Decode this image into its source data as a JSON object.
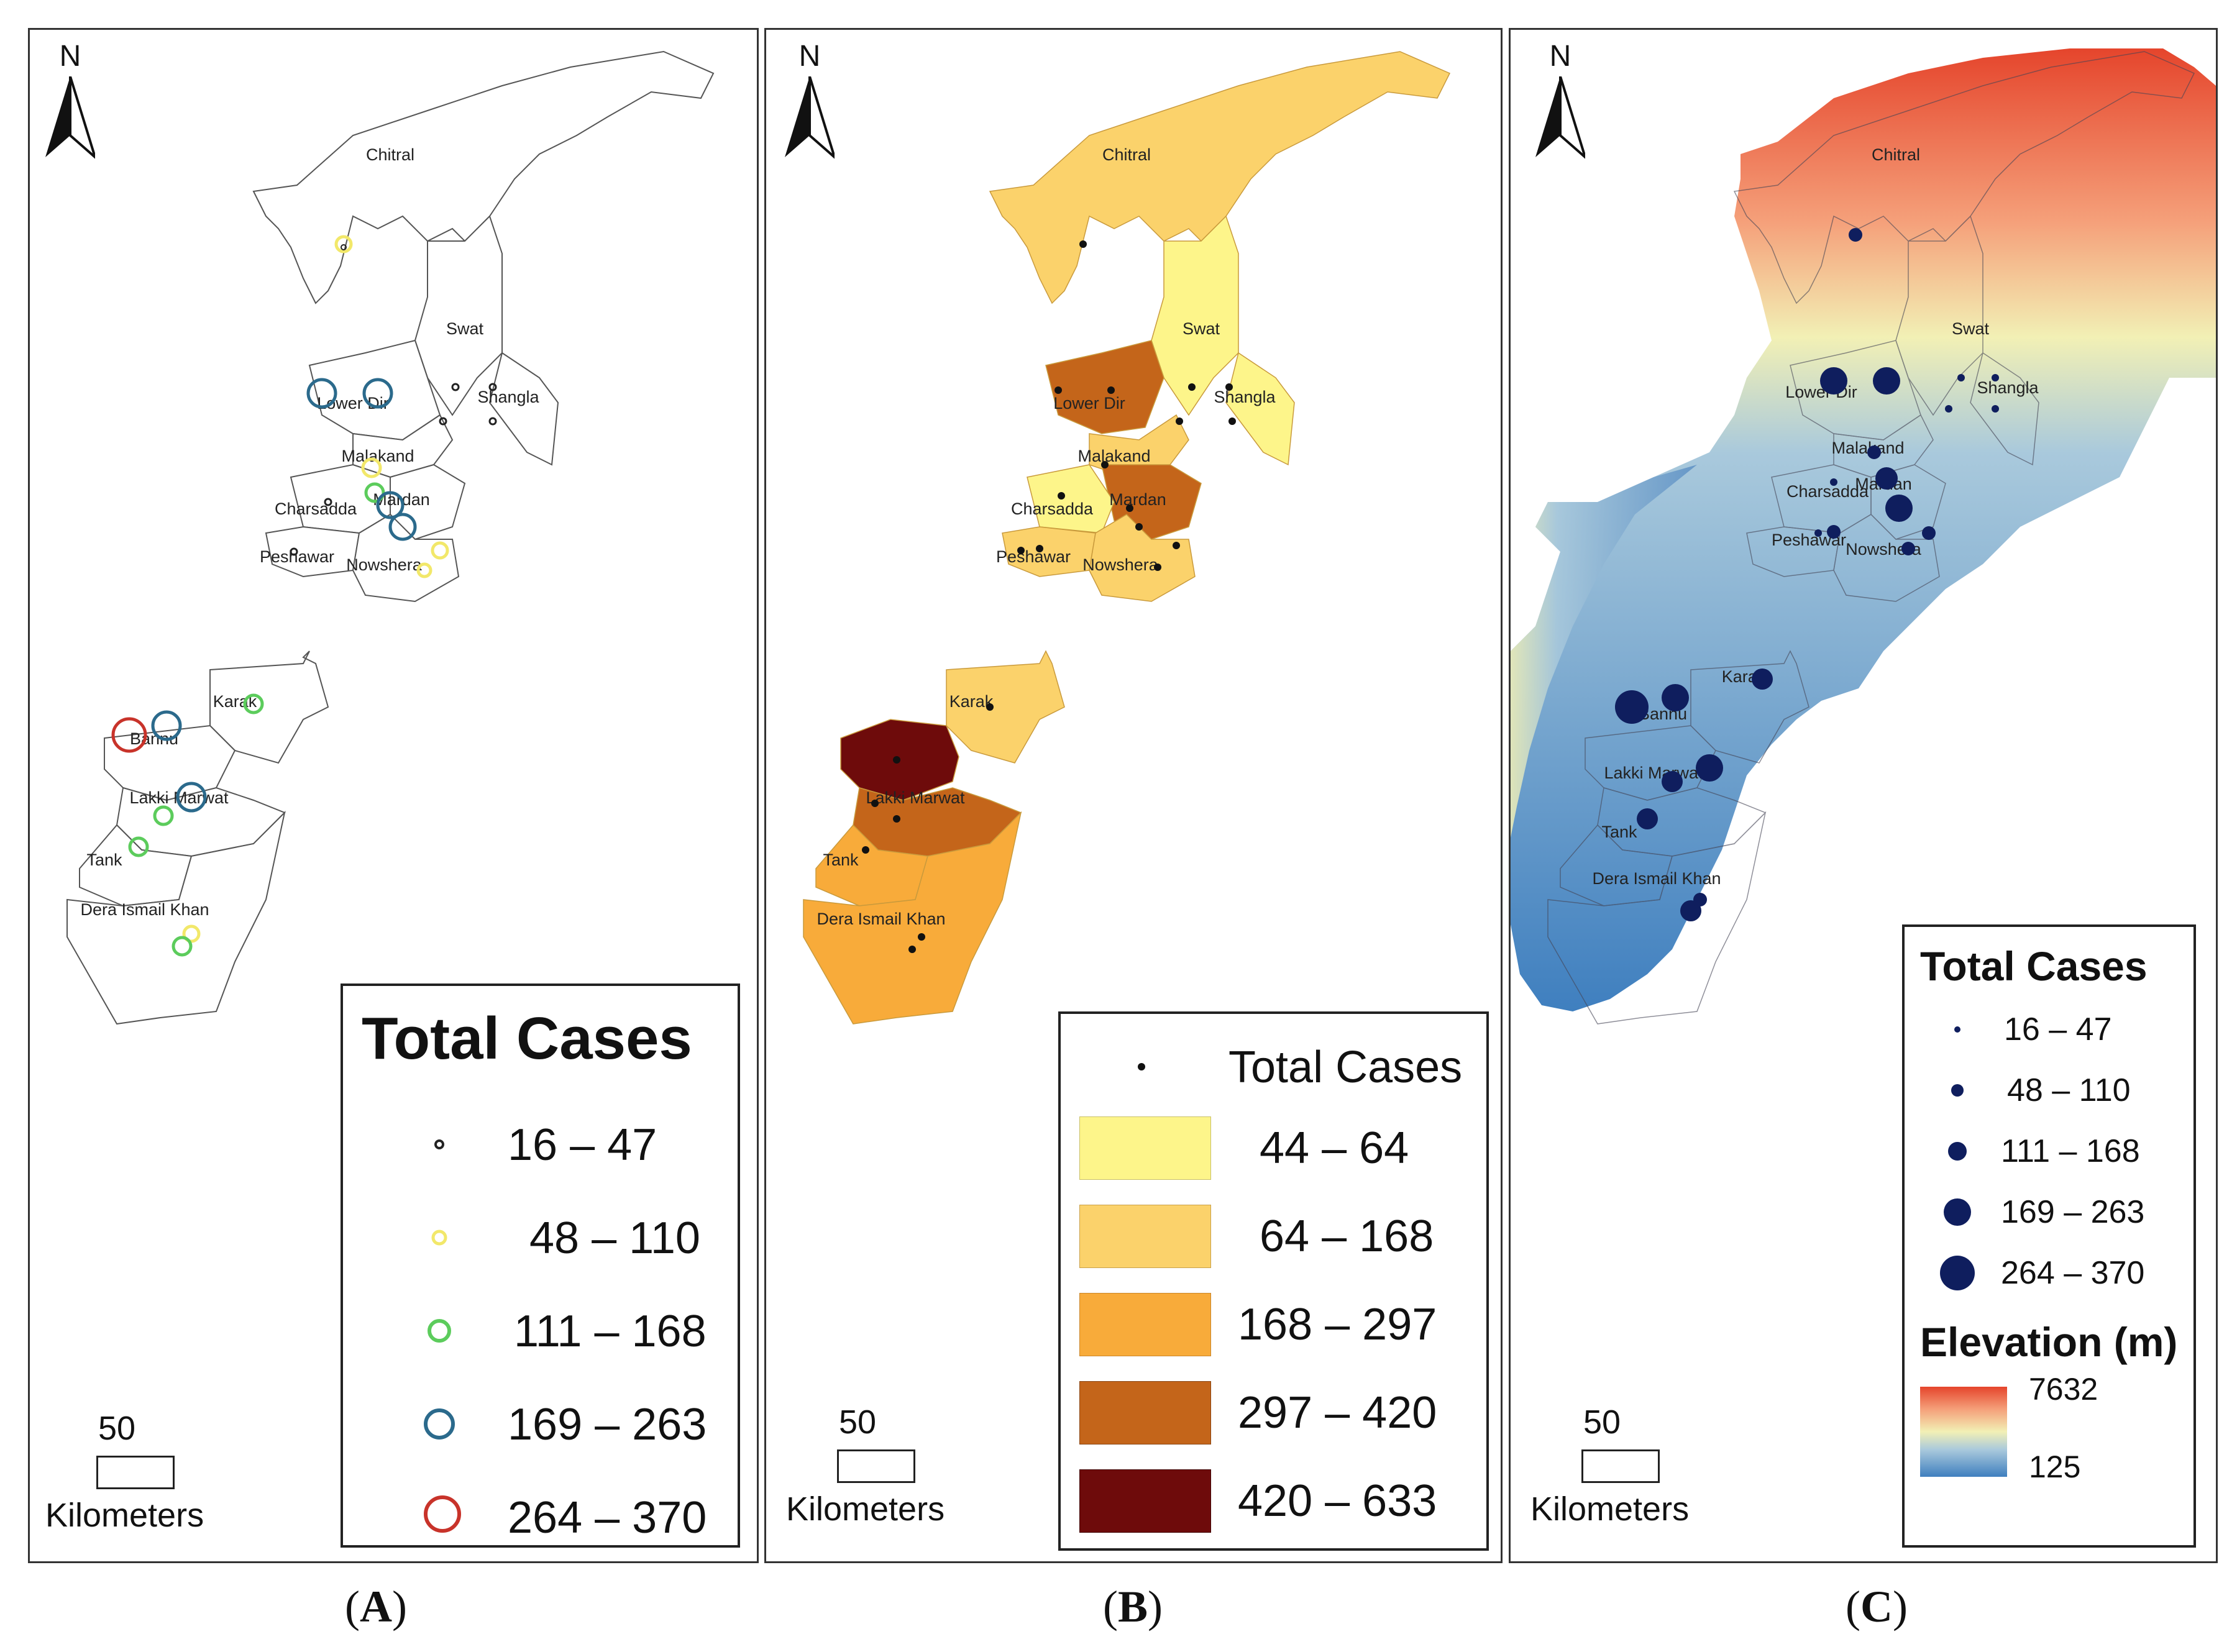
{
  "north_label": "N",
  "scale": {
    "distance": "50",
    "unit": "Kilometers"
  },
  "districts": [
    "Chitral",
    "Swat",
    "Shangla",
    "Lower Dir",
    "Malakand",
    "Mardan",
    "Charsadda",
    "Peshawar",
    "Nowshera",
    "Karak",
    "Bannu",
    "Lakki Marwat",
    "Tank",
    "Dera Ismail Khan"
  ],
  "panel_a": {
    "caption_letter": "A",
    "legend_title": "Total Cases",
    "classes": [
      {
        "range": "16 – 47",
        "color": "#222222"
      },
      {
        "range": "48 – 110",
        "color": "#f2e86a"
      },
      {
        "range": "111 – 168",
        "color": "#5ccc5c"
      },
      {
        "range": "169 – 263",
        "color": "#2b6a8c"
      },
      {
        "range": "264 – 370",
        "color": "#c8332a"
      }
    ]
  },
  "panel_b": {
    "caption_letter": "B",
    "dot_label": "Total Cases",
    "classes": [
      {
        "range": "44 – 64",
        "color": "#fdf58a"
      },
      {
        "range": "64 – 168",
        "color": "#fbd26b"
      },
      {
        "range": "168 – 297",
        "color": "#f8ab3a"
      },
      {
        "range": "297 – 420",
        "color": "#c4651a"
      },
      {
        "range": "420 – 633",
        "color": "#6e0b0b"
      }
    ]
  },
  "panel_c": {
    "caption_letter": "C",
    "legend_title": "Total Cases",
    "classes": [
      {
        "range": "16 – 47",
        "color": "#0f1e5e"
      },
      {
        "range": "48 – 110",
        "color": "#0f1e5e"
      },
      {
        "range": "111 – 168",
        "color": "#0f1e5e"
      },
      {
        "range": "169 – 263",
        "color": "#0f1e5e"
      },
      {
        "range": "264 – 370",
        "color": "#0f1e5e"
      }
    ],
    "elevation_title": "Elevation (m)",
    "elevation_max": "7632",
    "elevation_min": "125",
    "elevation_high_color": "#e5452c",
    "elevation_mid_color": "#f2f0b5",
    "elevation_low_color": "#3f7fbf"
  }
}
